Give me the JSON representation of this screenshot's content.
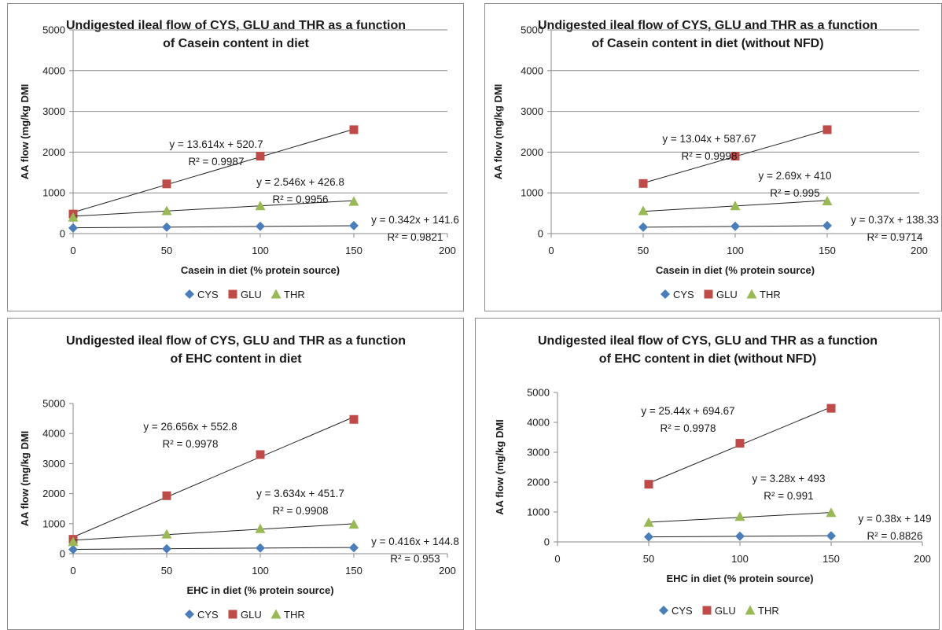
{
  "colors": {
    "CYS": "#4a7ebb",
    "GLU": "#be4b48",
    "THR": "#98b954"
  },
  "chart_data": [
    {
      "type": "scatter",
      "title": "Undigested ileal flow of CYS, GLU and THR as a function of Casein content in diet",
      "title_lines": [
        "Undigested ileal flow of CYS, GLU and THR as a function",
        "of Casein content in diet"
      ],
      "xlabel": "Casein in diet (% protein source)",
      "ylabel": "AA flow (mg/kg DMI",
      "xlim": [
        0,
        200
      ],
      "ylim": [
        0,
        5000
      ],
      "xticks": [
        "0",
        "50",
        "100",
        "150",
        "200"
      ],
      "yticks": [
        "0",
        "1000",
        "2000",
        "3000",
        "4000",
        "5000"
      ],
      "grid": true,
      "legend": "bottom",
      "series": [
        {
          "name": "CYS",
          "marker": "diamond",
          "x": [
            0,
            50,
            100,
            150
          ],
          "y": [
            138,
            160,
            178,
            196
          ],
          "trend": {
            "slope": 0.342,
            "intercept": 141.6
          },
          "equation": "y = 0.342x + 141.6",
          "r2_label": "R² = 0.9821"
        },
        {
          "name": "GLU",
          "marker": "square",
          "x": [
            0,
            50,
            100,
            150
          ],
          "y": [
            480,
            1220,
            1900,
            2550
          ],
          "trend": {
            "slope": 13.614,
            "intercept": 520.7
          },
          "equation": "y = 13.614x + 520.7",
          "r2_label": "R² = 0.9987"
        },
        {
          "name": "THR",
          "marker": "triangle",
          "x": [
            0,
            50,
            100,
            150
          ],
          "y": [
            400,
            560,
            680,
            790
          ],
          "trend": {
            "slope": 2.546,
            "intercept": 426.8
          },
          "equation": "y = 2.546x + 426.8",
          "r2_label": "R² = 0.9956"
        }
      ]
    },
    {
      "type": "scatter",
      "title": "Undigested ileal flow of CYS, GLU and THR as a function of Casein content in diet (without NFD)",
      "title_lines": [
        "Undigested ileal flow of CYS, GLU and THR as a function",
        "of Casein content in diet (without NFD)"
      ],
      "xlabel": "Casein in diet (% protein source)",
      "ylabel": "AA flow (mg/kg DMI",
      "xlim": [
        0,
        200
      ],
      "ylim": [
        0,
        5000
      ],
      "xticks": [
        "0",
        "50",
        "100",
        "150",
        "200"
      ],
      "yticks": [
        "0",
        "1000",
        "2000",
        "3000",
        "4000",
        "5000"
      ],
      "grid": true,
      "legend": "bottom",
      "series": [
        {
          "name": "CYS",
          "marker": "diamond",
          "x": [
            50,
            100,
            150
          ],
          "y": [
            160,
            178,
            196
          ],
          "trend": {
            "slope": 0.37,
            "intercept": 138.33
          },
          "equation": "y = 0.37x + 138.33",
          "r2_label": "R² = 0.9714"
        },
        {
          "name": "GLU",
          "marker": "square",
          "x": [
            50,
            100,
            150
          ],
          "y": [
            1230,
            1900,
            2550
          ],
          "trend": {
            "slope": 13.04,
            "intercept": 587.67
          },
          "equation": "y = 13.04x + 587.67",
          "r2_label": "R² = 0.9998"
        },
        {
          "name": "THR",
          "marker": "triangle",
          "x": [
            50,
            100,
            150
          ],
          "y": [
            560,
            680,
            800
          ],
          "trend": {
            "slope": 2.69,
            "intercept": 410
          },
          "equation": "y = 2.69x + 410",
          "r2_label": "R² = 0.995"
        }
      ]
    },
    {
      "type": "scatter",
      "title": "Undigested ileal flow of CYS, GLU and THR as a function of EHC content in diet",
      "title_lines": [
        "Undigested ileal flow of CYS, GLU and THR as a function",
        "of EHC content in diet"
      ],
      "xlabel": "EHC in diet (% protein source)",
      "ylabel": "AA flow (mg/kg DMI",
      "xlim": [
        0,
        200
      ],
      "ylim": [
        0,
        5000
      ],
      "xticks": [
        "0",
        "50",
        "100",
        "150",
        "200"
      ],
      "yticks": [
        "0",
        "1000",
        "2000",
        "3000",
        "4000",
        "5000"
      ],
      "grid": false,
      "legend": "bottom",
      "series": [
        {
          "name": "CYS",
          "marker": "diamond",
          "x": [
            0,
            50,
            100,
            150
          ],
          "y": [
            140,
            165,
            190,
            200
          ],
          "trend": {
            "slope": 0.416,
            "intercept": 144.8
          },
          "equation": "y = 0.416x + 144.8",
          "r2_label": "R² = 0.953"
        },
        {
          "name": "GLU",
          "marker": "square",
          "x": [
            0,
            50,
            100,
            150
          ],
          "y": [
            480,
            1930,
            3300,
            4470
          ],
          "trend": {
            "slope": 26.656,
            "intercept": 552.8
          },
          "equation": "y = 26.656x + 552.8",
          "r2_label": "R² = 0.9978"
        },
        {
          "name": "THR",
          "marker": "triangle",
          "x": [
            0,
            50,
            100,
            150
          ],
          "y": [
            400,
            650,
            830,
            980
          ],
          "trend": {
            "slope": 3.634,
            "intercept": 451.7
          },
          "equation": "y = 3.634x + 451.7",
          "r2_label": "R² = 0.9908"
        }
      ]
    },
    {
      "type": "scatter",
      "title": "Undigested ileal flow of CYS, GLU and THR as a function of EHC content in diet (without NFD)",
      "title_lines": [
        "Undigested ileal flow of CYS, GLU and THR as a function",
        "of EHC content in diet (without NFD)"
      ],
      "xlabel": "EHC in diet (% protein source)",
      "ylabel": "AA flow (mg/kg DMI",
      "xlim": [
        0,
        200
      ],
      "ylim": [
        0,
        5000
      ],
      "xticks": [
        "0",
        "50",
        "100",
        "150",
        "200"
      ],
      "yticks": [
        "0",
        "1000",
        "2000",
        "3000",
        "4000",
        "5000"
      ],
      "grid": false,
      "legend": "bottom",
      "series": [
        {
          "name": "CYS",
          "marker": "diamond",
          "x": [
            50,
            100,
            150
          ],
          "y": [
            168,
            190,
            205
          ],
          "trend": {
            "slope": 0.38,
            "intercept": 149
          },
          "equation": "y = 0.38x + 149",
          "r2_label": "R² = 0.8826"
        },
        {
          "name": "GLU",
          "marker": "square",
          "x": [
            50,
            100,
            150
          ],
          "y": [
            1930,
            3300,
            4470
          ],
          "trend": {
            "slope": 25.44,
            "intercept": 694.67
          },
          "equation": "y = 25.44x + 694.67",
          "r2_label": "R² = 0.9978"
        },
        {
          "name": "THR",
          "marker": "triangle",
          "x": [
            50,
            100,
            150
          ],
          "y": [
            650,
            850,
            980
          ],
          "trend": {
            "slope": 3.28,
            "intercept": 493
          },
          "equation": "y = 3.28x + 493",
          "r2_label": "R² = 0.991"
        }
      ]
    }
  ]
}
